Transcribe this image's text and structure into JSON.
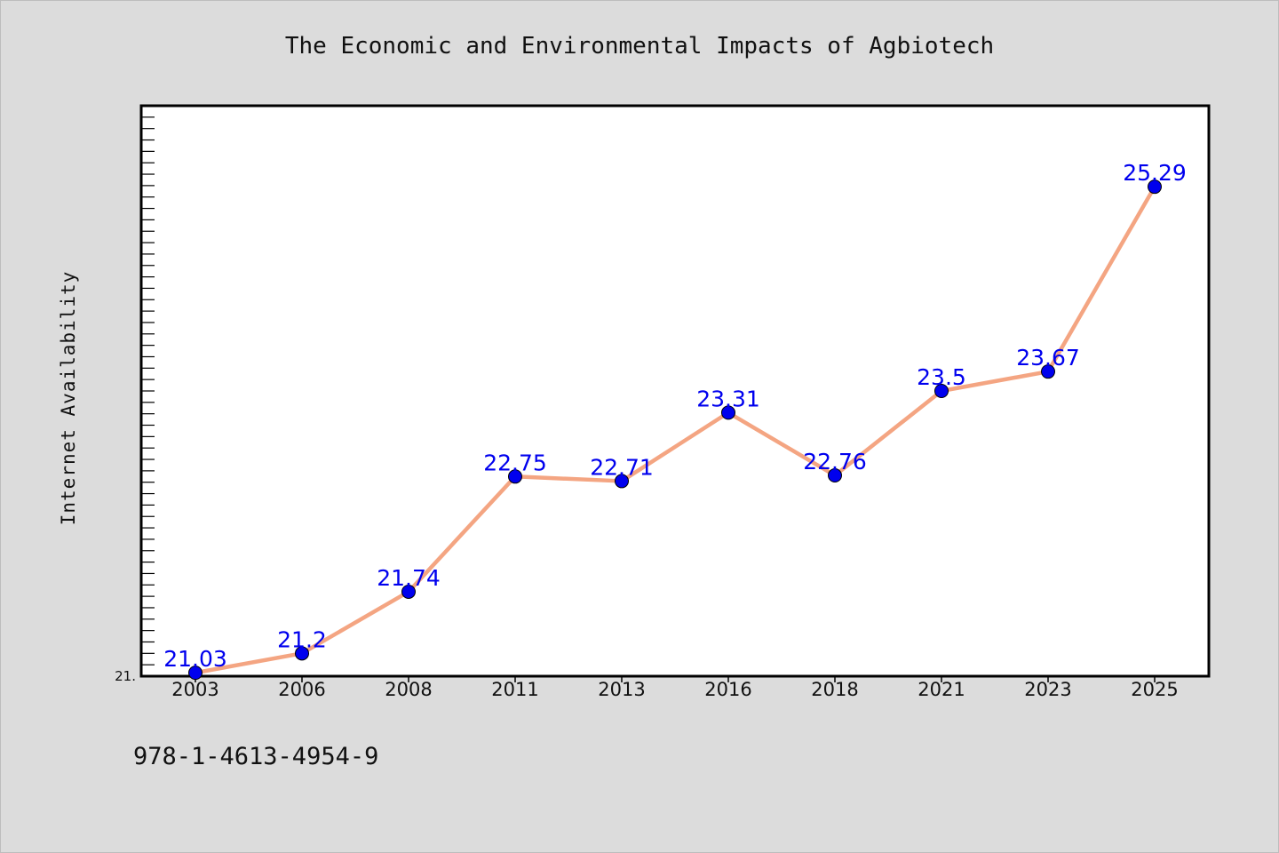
{
  "chart_data": {
    "type": "line",
    "title": "The Economic and Environmental Impacts of Agbiotech",
    "xlabel": "",
    "ylabel": "Internet Availability",
    "categories": [
      "2003",
      "2006",
      "2008",
      "2011",
      "2013",
      "2016",
      "2018",
      "2021",
      "2023",
      "2025"
    ],
    "series": [
      {
        "values": [
          21.03,
          21.2,
          21.74,
          22.75,
          22.71,
          23.31,
          22.76,
          23.5,
          23.67,
          25.29
        ],
        "labels": [
          "21.03",
          "21.2",
          "21.74",
          "22.75",
          "22.71",
          "23.31",
          "22.76",
          "23.5",
          "23.67",
          "25.29"
        ]
      }
    ],
    "ylim": [
      21.0,
      26.0
    ],
    "y_tick_labels": [
      "21."
    ],
    "grid": false,
    "legend": "none",
    "line_color": "#f4a582",
    "marker_color": "#0000ee",
    "label_color": "#0000ee"
  },
  "footnote": "978-1-4613-4954-9"
}
